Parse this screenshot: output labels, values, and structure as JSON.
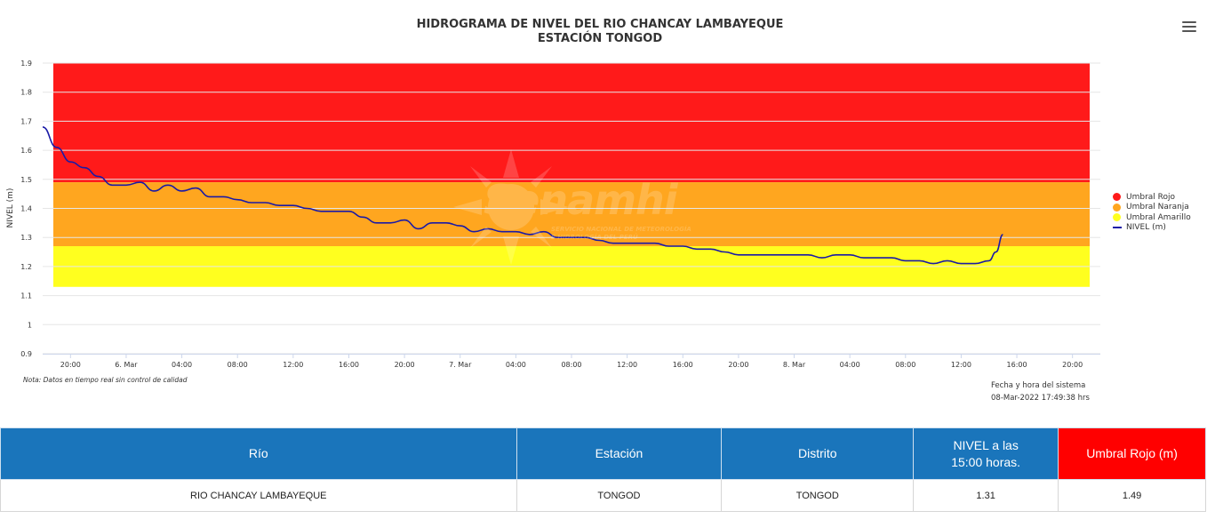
{
  "chart_data": {
    "type": "line",
    "title": "HIDROGRAMA DE NIVEL DEL RIO CHANCAY LAMBAYEQUE",
    "subtitle": "ESTACIÓN TONGOD",
    "ylabel": "NIVEL (m)",
    "xlabel": "",
    "ylim": [
      0.9,
      1.9
    ],
    "yticks": [
      "0.9",
      "1",
      "1.1",
      "1.2",
      "1.3",
      "1.4",
      "1.5",
      "1.6",
      "1.7",
      "1.8",
      "1.9"
    ],
    "xlim": [
      "2022-03-05 18:00",
      "2022-03-08 22:00"
    ],
    "xticks": [
      {
        "t": "2022-03-05 20:00",
        "label": "20:00"
      },
      {
        "t": "2022-03-06 00:00",
        "label": "6. Mar"
      },
      {
        "t": "2022-03-06 04:00",
        "label": "04:00"
      },
      {
        "t": "2022-03-06 08:00",
        "label": "08:00"
      },
      {
        "t": "2022-03-06 12:00",
        "label": "12:00"
      },
      {
        "t": "2022-03-06 16:00",
        "label": "16:00"
      },
      {
        "t": "2022-03-06 20:00",
        "label": "20:00"
      },
      {
        "t": "2022-03-07 00:00",
        "label": "7. Mar"
      },
      {
        "t": "2022-03-07 04:00",
        "label": "04:00"
      },
      {
        "t": "2022-03-07 08:00",
        "label": "08:00"
      },
      {
        "t": "2022-03-07 12:00",
        "label": "12:00"
      },
      {
        "t": "2022-03-07 16:00",
        "label": "16:00"
      },
      {
        "t": "2022-03-07 20:00",
        "label": "20:00"
      },
      {
        "t": "2022-03-08 00:00",
        "label": "8. Mar"
      },
      {
        "t": "2022-03-08 04:00",
        "label": "04:00"
      },
      {
        "t": "2022-03-08 08:00",
        "label": "08:00"
      },
      {
        "t": "2022-03-08 12:00",
        "label": "12:00"
      },
      {
        "t": "2022-03-08 16:00",
        "label": "16:00"
      },
      {
        "t": "2022-03-08 20:00",
        "label": "20:00"
      }
    ],
    "bands": [
      {
        "name": "Umbral Rojo",
        "from": 1.49,
        "to": 1.9,
        "color": "#ff1a1a"
      },
      {
        "name": "Umbral Naranja",
        "from": 1.27,
        "to": 1.49,
        "color": "#ffa61f"
      },
      {
        "name": "Umbral Amarillo",
        "from": 1.13,
        "to": 1.27,
        "color": "#ffff1f"
      }
    ],
    "band_time_range": [
      "2022-03-05 18:00",
      "2022-03-08 22:00"
    ],
    "series": [
      {
        "name": "NIVEL (m)",
        "color": "#1a1aa6",
        "data": [
          [
            "2022-03-05 18:00",
            1.68
          ],
          [
            "2022-03-05 19:00",
            1.61
          ],
          [
            "2022-03-05 20:00",
            1.56
          ],
          [
            "2022-03-05 21:00",
            1.54
          ],
          [
            "2022-03-05 22:00",
            1.51
          ],
          [
            "2022-03-05 23:00",
            1.48
          ],
          [
            "2022-03-06 00:00",
            1.48
          ],
          [
            "2022-03-06 01:00",
            1.49
          ],
          [
            "2022-03-06 02:00",
            1.46
          ],
          [
            "2022-03-06 03:00",
            1.48
          ],
          [
            "2022-03-06 04:00",
            1.46
          ],
          [
            "2022-03-06 05:00",
            1.47
          ],
          [
            "2022-03-06 06:00",
            1.44
          ],
          [
            "2022-03-06 07:00",
            1.44
          ],
          [
            "2022-03-06 08:00",
            1.43
          ],
          [
            "2022-03-06 09:00",
            1.42
          ],
          [
            "2022-03-06 10:00",
            1.42
          ],
          [
            "2022-03-06 11:00",
            1.41
          ],
          [
            "2022-03-06 12:00",
            1.41
          ],
          [
            "2022-03-06 13:00",
            1.4
          ],
          [
            "2022-03-06 14:00",
            1.39
          ],
          [
            "2022-03-06 15:00",
            1.39
          ],
          [
            "2022-03-06 16:00",
            1.39
          ],
          [
            "2022-03-06 17:00",
            1.37
          ],
          [
            "2022-03-06 18:00",
            1.35
          ],
          [
            "2022-03-06 19:00",
            1.35
          ],
          [
            "2022-03-06 20:00",
            1.36
          ],
          [
            "2022-03-06 21:00",
            1.33
          ],
          [
            "2022-03-06 22:00",
            1.35
          ],
          [
            "2022-03-06 23:00",
            1.35
          ],
          [
            "2022-03-07 00:00",
            1.34
          ],
          [
            "2022-03-07 01:00",
            1.32
          ],
          [
            "2022-03-07 02:00",
            1.33
          ],
          [
            "2022-03-07 03:00",
            1.32
          ],
          [
            "2022-03-07 04:00",
            1.32
          ],
          [
            "2022-03-07 05:00",
            1.31
          ],
          [
            "2022-03-07 06:00",
            1.32
          ],
          [
            "2022-03-07 07:00",
            1.3
          ],
          [
            "2022-03-07 08:00",
            1.3
          ],
          [
            "2022-03-07 09:00",
            1.3
          ],
          [
            "2022-03-07 10:00",
            1.29
          ],
          [
            "2022-03-07 11:00",
            1.28
          ],
          [
            "2022-03-07 12:00",
            1.28
          ],
          [
            "2022-03-07 13:00",
            1.28
          ],
          [
            "2022-03-07 14:00",
            1.28
          ],
          [
            "2022-03-07 15:00",
            1.27
          ],
          [
            "2022-03-07 16:00",
            1.27
          ],
          [
            "2022-03-07 17:00",
            1.26
          ],
          [
            "2022-03-07 18:00",
            1.26
          ],
          [
            "2022-03-07 19:00",
            1.25
          ],
          [
            "2022-03-07 20:00",
            1.24
          ],
          [
            "2022-03-07 21:00",
            1.24
          ],
          [
            "2022-03-07 22:00",
            1.24
          ],
          [
            "2022-03-07 23:00",
            1.24
          ],
          [
            "2022-03-08 00:00",
            1.24
          ],
          [
            "2022-03-08 01:00",
            1.24
          ],
          [
            "2022-03-08 02:00",
            1.23
          ],
          [
            "2022-03-08 03:00",
            1.24
          ],
          [
            "2022-03-08 04:00",
            1.24
          ],
          [
            "2022-03-08 05:00",
            1.23
          ],
          [
            "2022-03-08 06:00",
            1.23
          ],
          [
            "2022-03-08 07:00",
            1.23
          ],
          [
            "2022-03-08 08:00",
            1.22
          ],
          [
            "2022-03-08 09:00",
            1.22
          ],
          [
            "2022-03-08 10:00",
            1.21
          ],
          [
            "2022-03-08 11:00",
            1.22
          ],
          [
            "2022-03-08 12:00",
            1.21
          ],
          [
            "2022-03-08 13:00",
            1.21
          ],
          [
            "2022-03-08 14:00",
            1.22
          ],
          [
            "2022-03-08 14:30",
            1.25
          ],
          [
            "2022-03-08 15:00",
            1.31
          ]
        ]
      }
    ],
    "legend_position": "right",
    "grid": true
  },
  "menu": {
    "icon": "hamburger-menu-icon"
  },
  "watermark": {
    "brand": "Senamhi",
    "line1": "SERVICIO NACIONAL DE METEOROLOGÍA",
    "line2": "E HIDROLOGÍA DEL PERÚ",
    "icon": "senamhi-sun-logo-icon"
  },
  "note": "Nota: Datos en tiempo real sin control de calidad",
  "system_time": {
    "label": "Fecha y hora del sistema",
    "value": "08-Mar-2022 17:49:38 hrs"
  },
  "table": {
    "headers": {
      "rio": "Río",
      "estacion": "Estación",
      "distrito": "Distrito",
      "nivel_line1": "NIVEL a las",
      "nivel_line2": "15:00 horas.",
      "umbral": "Umbral Rojo (m)"
    },
    "row": {
      "rio": "RIO CHANCAY LAMBAYEQUE",
      "estacion": "TONGOD",
      "distrito": "TONGOD",
      "nivel": "1.31",
      "umbral": "1.49"
    }
  },
  "colors": {
    "header_blue": "#1a75bb",
    "header_red": "#ff0000"
  }
}
